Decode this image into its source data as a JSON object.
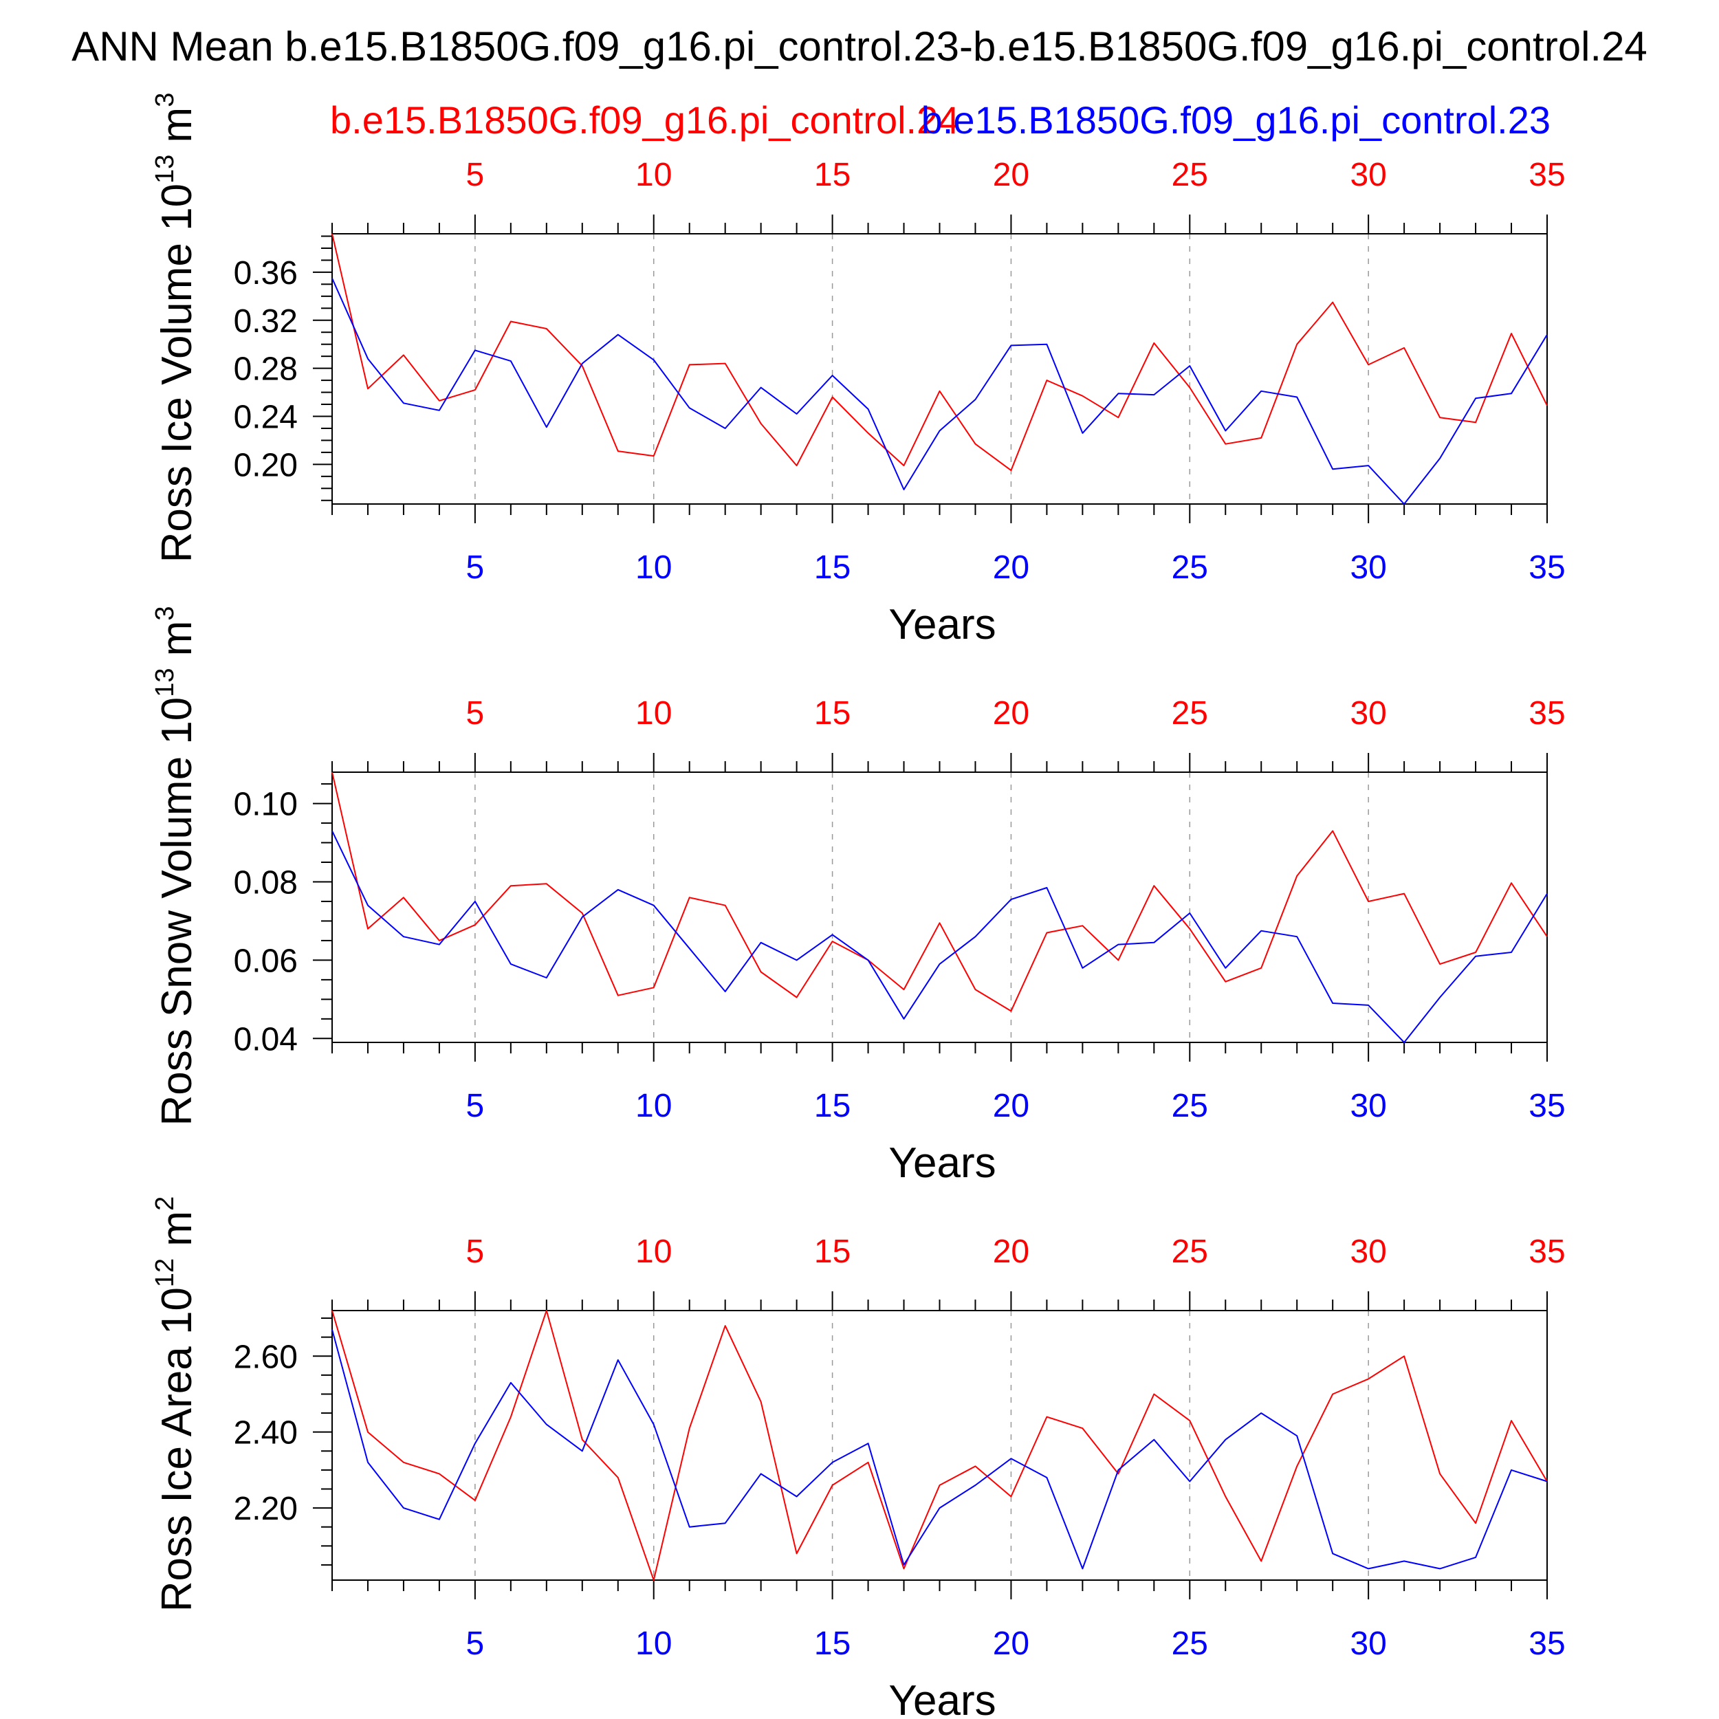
{
  "title": "ANN Mean b.e15.B1850G.f09_g16.pi_control.23-b.e15.B1850G.f09_g16.pi_control.24",
  "colors": {
    "red": "#ff0000",
    "blue": "#0000ff",
    "axis": "#000000",
    "grid": "#999999"
  },
  "legend": {
    "red": "b.e15.B1850G.f09_g16.pi_control.24",
    "blue": "b.e15.B1850G.f09_g16.pi_control.23"
  },
  "xlabel": "Years",
  "chart_data": [
    {
      "type": "line",
      "ylabel_main": "Ross Ice Volume 10",
      "ylabel_exp": "13",
      "ylabel_unit": " m",
      "ylabel_unit_exp": "3",
      "xlim": [
        1,
        35
      ],
      "ylim": [
        0.167,
        0.392
      ],
      "yticks": [
        {
          "v": 0.2,
          "label": "0.20"
        },
        {
          "v": 0.24,
          "label": "0.24"
        },
        {
          "v": 0.28,
          "label": "0.28"
        },
        {
          "v": 0.32,
          "label": "0.32"
        },
        {
          "v": 0.36,
          "label": "0.36"
        }
      ],
      "xticks": [
        {
          "v": 5,
          "label": "5"
        },
        {
          "v": 10,
          "label": "10"
        },
        {
          "v": 15,
          "label": "15"
        },
        {
          "v": 20,
          "label": "20"
        },
        {
          "v": 25,
          "label": "25"
        },
        {
          "v": 30,
          "label": "30"
        },
        {
          "v": 35,
          "label": "35"
        }
      ],
      "grid": "dashed vertical at major x ticks",
      "series": [
        {
          "color": "red",
          "x": [
            1,
            2,
            3,
            4,
            5,
            6,
            7,
            8,
            9,
            10,
            11,
            12,
            13,
            14,
            15,
            16,
            17,
            18,
            19,
            20,
            21,
            22,
            23,
            24,
            25,
            26,
            27,
            28,
            29,
            30,
            31,
            32,
            33,
            34,
            35
          ],
          "values": [
            0.392,
            0.263,
            0.291,
            0.253,
            0.262,
            0.319,
            0.313,
            0.282,
            0.211,
            0.207,
            0.283,
            0.284,
            0.234,
            0.199,
            0.256,
            0.226,
            0.199,
            0.261,
            0.217,
            0.195,
            0.27,
            0.257,
            0.239,
            0.301,
            0.264,
            0.217,
            0.222,
            0.3,
            0.335,
            0.283,
            0.297,
            0.239,
            0.235,
            0.309,
            0.249
          ]
        },
        {
          "color": "blue",
          "x": [
            1,
            2,
            3,
            4,
            5,
            6,
            7,
            8,
            9,
            10,
            11,
            12,
            13,
            14,
            15,
            16,
            17,
            18,
            19,
            20,
            21,
            22,
            23,
            24,
            25,
            26,
            27,
            28,
            29,
            30,
            31,
            32,
            33,
            34,
            35
          ],
          "values": [
            0.355,
            0.288,
            0.251,
            0.245,
            0.295,
            0.286,
            0.231,
            0.284,
            0.308,
            0.287,
            0.247,
            0.23,
            0.264,
            0.242,
            0.274,
            0.246,
            0.179,
            0.228,
            0.254,
            0.299,
            0.3,
            0.226,
            0.259,
            0.258,
            0.282,
            0.228,
            0.261,
            0.256,
            0.196,
            0.199,
            0.167,
            0.205,
            0.255,
            0.259,
            0.308
          ]
        }
      ]
    },
    {
      "type": "line",
      "ylabel_main": "Ross Snow Volume 10",
      "ylabel_exp": "13",
      "ylabel_unit": " m",
      "ylabel_unit_exp": "3",
      "xlim": [
        1,
        35
      ],
      "ylim": [
        0.039,
        0.108
      ],
      "yticks": [
        {
          "v": 0.04,
          "label": "0.04"
        },
        {
          "v": 0.06,
          "label": "0.06"
        },
        {
          "v": 0.08,
          "label": "0.08"
        },
        {
          "v": 0.1,
          "label": "0.10"
        }
      ],
      "xticks": [
        {
          "v": 5,
          "label": "5"
        },
        {
          "v": 10,
          "label": "10"
        },
        {
          "v": 15,
          "label": "15"
        },
        {
          "v": 20,
          "label": "20"
        },
        {
          "v": 25,
          "label": "25"
        },
        {
          "v": 30,
          "label": "30"
        },
        {
          "v": 35,
          "label": "35"
        }
      ],
      "grid": "dashed vertical at major x ticks",
      "series": [
        {
          "color": "red",
          "x": [
            1,
            2,
            3,
            4,
            5,
            6,
            7,
            8,
            9,
            10,
            11,
            12,
            13,
            14,
            15,
            16,
            17,
            18,
            19,
            20,
            21,
            22,
            23,
            24,
            25,
            26,
            27,
            28,
            29,
            30,
            31,
            32,
            33,
            34,
            35
          ],
          "values": [
            0.108,
            0.068,
            0.076,
            0.065,
            0.069,
            0.079,
            0.0795,
            0.072,
            0.051,
            0.053,
            0.076,
            0.074,
            0.057,
            0.0505,
            0.0648,
            0.06,
            0.0525,
            0.0695,
            0.0525,
            0.047,
            0.067,
            0.0688,
            0.06,
            0.079,
            0.068,
            0.0545,
            0.058,
            0.0815,
            0.093,
            0.075,
            0.077,
            0.059,
            0.062,
            0.0797,
            0.066
          ]
        },
        {
          "color": "blue",
          "x": [
            1,
            2,
            3,
            4,
            5,
            6,
            7,
            8,
            9,
            10,
            11,
            12,
            13,
            14,
            15,
            16,
            17,
            18,
            19,
            20,
            21,
            22,
            23,
            24,
            25,
            26,
            27,
            28,
            29,
            30,
            31,
            32,
            33,
            34,
            35
          ],
          "values": [
            0.093,
            0.074,
            0.066,
            0.064,
            0.075,
            0.059,
            0.0555,
            0.071,
            0.078,
            0.074,
            0.063,
            0.052,
            0.0645,
            0.06,
            0.0665,
            0.06,
            0.045,
            0.059,
            0.066,
            0.0755,
            0.0785,
            0.058,
            0.064,
            0.0645,
            0.072,
            0.058,
            0.0675,
            0.066,
            0.049,
            0.0485,
            0.039,
            0.0505,
            0.061,
            0.062,
            0.077
          ]
        }
      ]
    },
    {
      "type": "line",
      "ylabel_main": "Ross Ice Area 10",
      "ylabel_exp": "12",
      "ylabel_unit": " m",
      "ylabel_unit_exp": "2",
      "xlim": [
        1,
        35
      ],
      "ylim": [
        2.01,
        2.72
      ],
      "yticks": [
        {
          "v": 2.2,
          "label": "2.20"
        },
        {
          "v": 2.4,
          "label": "2.40"
        },
        {
          "v": 2.6,
          "label": "2.60"
        }
      ],
      "xticks": [
        {
          "v": 5,
          "label": "5"
        },
        {
          "v": 10,
          "label": "10"
        },
        {
          "v": 15,
          "label": "15"
        },
        {
          "v": 20,
          "label": "20"
        },
        {
          "v": 25,
          "label": "25"
        },
        {
          "v": 30,
          "label": "30"
        },
        {
          "v": 35,
          "label": "35"
        }
      ],
      "grid": "dashed vertical at major x ticks",
      "series": [
        {
          "color": "red",
          "x": [
            1,
            2,
            3,
            4,
            5,
            6,
            7,
            8,
            9,
            10,
            11,
            12,
            13,
            14,
            15,
            16,
            17,
            18,
            19,
            20,
            21,
            22,
            23,
            24,
            25,
            26,
            27,
            28,
            29,
            30,
            31,
            32,
            33,
            34,
            35
          ],
          "values": [
            2.72,
            2.4,
            2.32,
            2.29,
            2.22,
            2.44,
            2.72,
            2.38,
            2.28,
            2.01,
            2.41,
            2.68,
            2.48,
            2.08,
            2.26,
            2.32,
            2.04,
            2.26,
            2.31,
            2.23,
            2.44,
            2.41,
            2.29,
            2.5,
            2.43,
            2.23,
            2.06,
            2.31,
            2.5,
            2.54,
            2.6,
            2.29,
            2.16,
            2.43,
            2.27
          ]
        },
        {
          "color": "blue",
          "x": [
            1,
            2,
            3,
            4,
            5,
            6,
            7,
            8,
            9,
            10,
            11,
            12,
            13,
            14,
            15,
            16,
            17,
            18,
            19,
            20,
            21,
            22,
            23,
            24,
            25,
            26,
            27,
            28,
            29,
            30,
            31,
            32,
            33,
            34,
            35
          ],
          "values": [
            2.67,
            2.32,
            2.2,
            2.17,
            2.37,
            2.53,
            2.42,
            2.35,
            2.59,
            2.42,
            2.15,
            2.16,
            2.29,
            2.23,
            2.32,
            2.37,
            2.05,
            2.2,
            2.26,
            2.33,
            2.28,
            2.04,
            2.3,
            2.38,
            2.27,
            2.38,
            2.45,
            2.39,
            2.08,
            2.04,
            2.06,
            2.04,
            2.07,
            2.3,
            2.27
          ]
        }
      ]
    }
  ]
}
